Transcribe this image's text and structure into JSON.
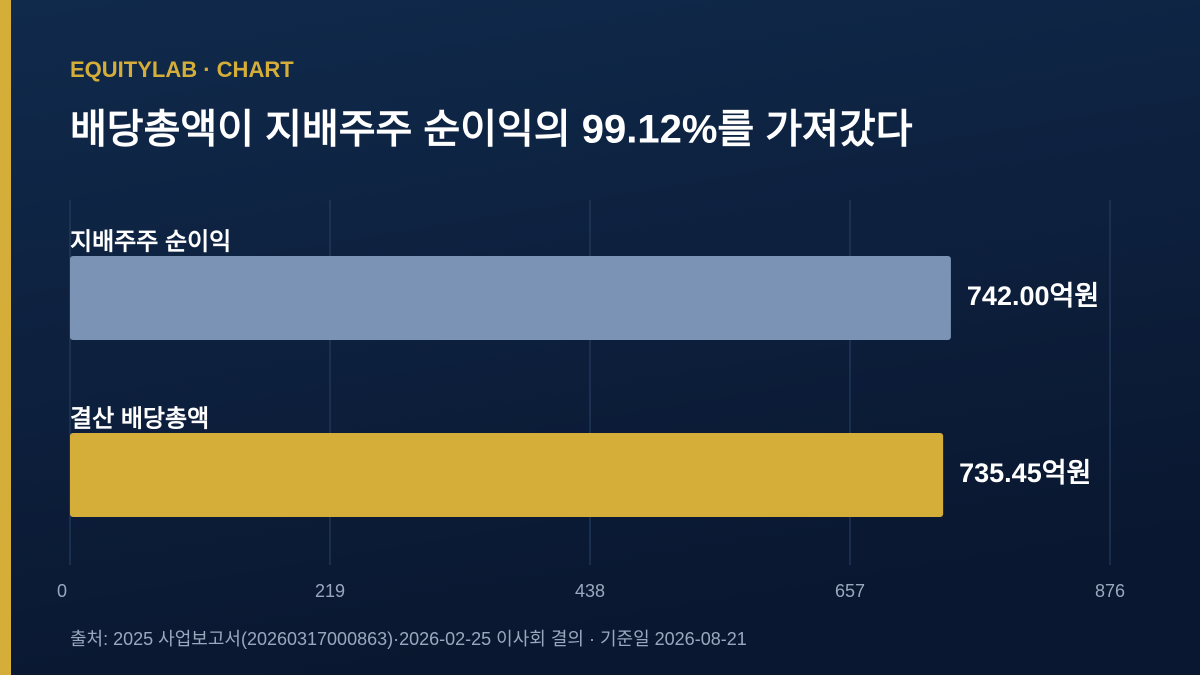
{
  "chart_data": {
    "type": "hbar",
    "brand": "EQUITYLAB · CHART",
    "title": "배당총액이 지배주주 순이익의 99.12%를 가져갔다",
    "categories": [
      "지배주주 순이익",
      "결산 배당총액"
    ],
    "values": [
      742.0,
      735.45
    ],
    "value_labels": [
      "742.00억원",
      "735.45억원"
    ],
    "colors": [
      "#7b93b5",
      "#d4ae38"
    ],
    "xlim": [
      0,
      876
    ],
    "xticks": [
      0,
      219,
      438,
      657,
      876
    ],
    "grid": true,
    "source": "출처: 2025 사업보고서(20260317000863)·2026-02-25 이사회 결의 · 기준일 2026-08-21"
  }
}
